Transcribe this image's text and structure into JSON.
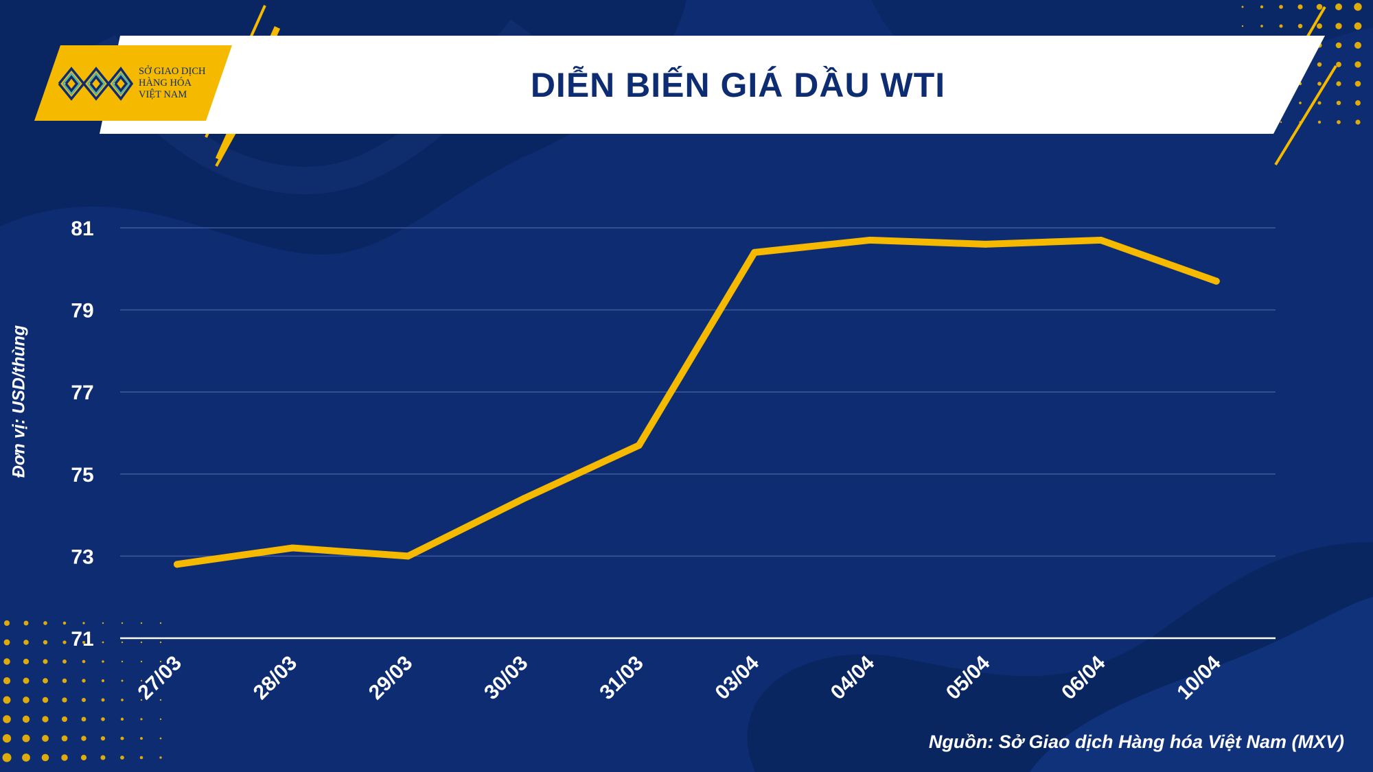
{
  "header": {
    "title": "DIỄN BIẾN GIÁ DẦU WTI",
    "logo_lines": [
      "SỞ GIAO DỊCH",
      "HÀNG HÓA",
      "VIỆT NAM"
    ]
  },
  "colors": {
    "background": "#0d2c72",
    "accent": "#f5b900",
    "line": "#f5b900",
    "grid": "#3f5a9b",
    "text": "#ffffff",
    "title": "#0d2c72"
  },
  "chart_data": {
    "type": "line",
    "title": "DIỄN BIẾN GIÁ DẦU WTI",
    "xlabel": "",
    "ylabel": "Đơn vị: USD/thùng",
    "categories": [
      "27/03",
      "28/03",
      "29/03",
      "30/03",
      "31/03",
      "03/04",
      "04/04",
      "05/04",
      "06/04",
      "10/04"
    ],
    "series": [
      {
        "name": "",
        "values": [
          72.8,
          73.2,
          73.0,
          74.4,
          75.7,
          80.4,
          80.7,
          80.6,
          80.7,
          79.7
        ]
      }
    ],
    "ylim": [
      71,
      81
    ],
    "yticks": [
      "71",
      "73",
      "75",
      "77",
      "79",
      "81"
    ],
    "grid": true,
    "legend": "none",
    "source": "Nguồn: Sở Giao dịch Hàng hóa Việt Nam (MXV)"
  }
}
